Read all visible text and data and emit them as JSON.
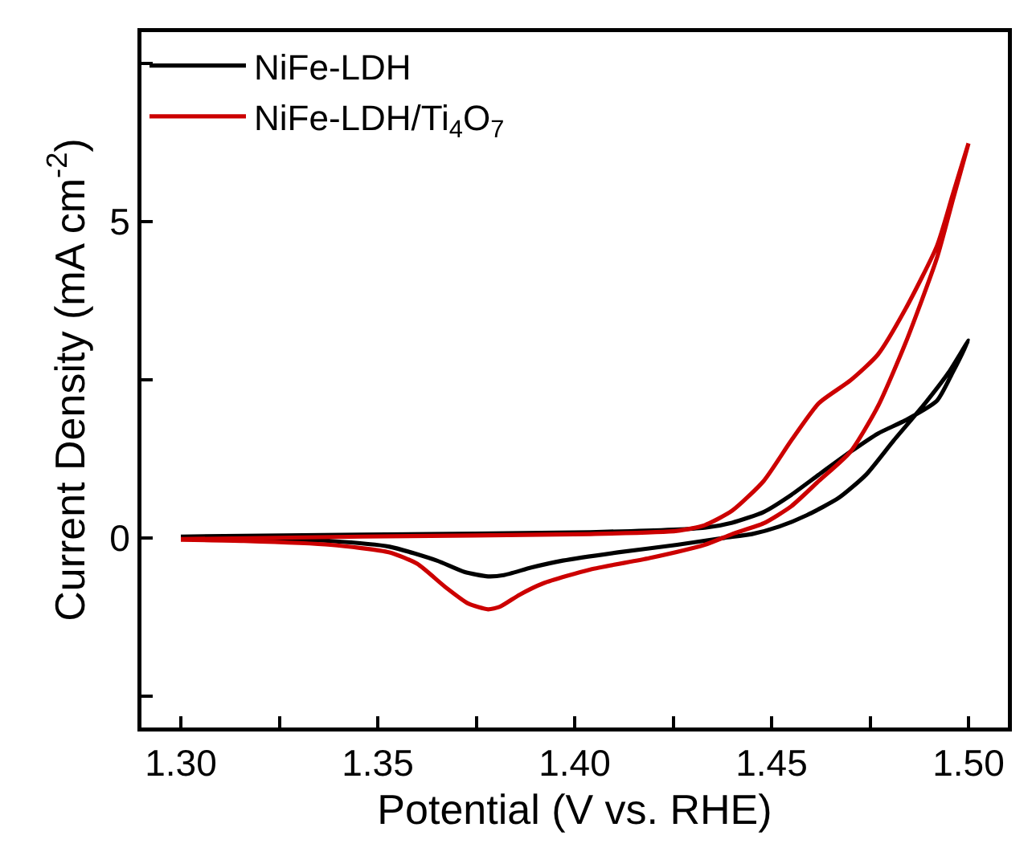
{
  "chart_data": {
    "type": "line",
    "xlabel": "Potential (V vs. RHE)",
    "ylabel": "Current Density (mA cm$^{-2}$)",
    "xlim": [
      1.29,
      1.51
    ],
    "ylim": [
      -3,
      8
    ],
    "xticks": [
      {
        "value": 1.3,
        "label": "1.30"
      },
      {
        "value": 1.325,
        "label": null
      },
      {
        "value": 1.35,
        "label": "1.35"
      },
      {
        "value": 1.375,
        "label": null
      },
      {
        "value": 1.4,
        "label": "1.40"
      },
      {
        "value": 1.425,
        "label": null
      },
      {
        "value": 1.45,
        "label": "1.45"
      },
      {
        "value": 1.475,
        "label": null
      },
      {
        "value": 1.5,
        "label": "1.50"
      }
    ],
    "yticks": [
      {
        "value": -2.5,
        "label": null
      },
      0,
      {
        "value": 2.5,
        "label": null
      },
      5,
      {
        "value": 7.5,
        "label": null
      }
    ],
    "grid": false,
    "legend": "top left",
    "marker": "none",
    "line_style": "solid",
    "series": [
      {
        "name": "NiFe-LDH",
        "color": "#000000",
        "x": [
          1.3,
          1.346,
          1.404,
          1.433,
          1.44,
          1.448,
          1.455,
          1.462,
          1.47,
          1.477,
          1.484,
          1.492,
          1.496,
          1.5,
          1.495,
          1.489,
          1.481,
          1.474,
          1.467,
          1.459,
          1.452,
          1.445,
          1.438,
          1.426,
          1.411,
          1.397,
          1.389,
          1.382,
          1.378,
          1.372,
          1.365,
          1.353,
          1.338,
          1.316,
          1.3
        ],
        "values": [
          0.02,
          0.05,
          0.09,
          0.16,
          0.24,
          0.41,
          0.68,
          1.0,
          1.36,
          1.65,
          1.86,
          2.17,
          2.62,
          3.12,
          2.62,
          2.13,
          1.54,
          1.0,
          0.63,
          0.36,
          0.18,
          0.06,
          0,
          -0.11,
          -0.23,
          -0.36,
          -0.47,
          -0.59,
          -0.61,
          -0.54,
          -0.36,
          -0.14,
          -0.05,
          0,
          0
        ]
      },
      {
        "name": "NiFe-LDH/Ti$_{4}$O$_{7}$",
        "color": "#cc0000",
        "x": [
          1.3,
          1.346,
          1.404,
          1.426,
          1.433,
          1.44,
          1.448,
          1.455,
          1.462,
          1.47,
          1.477,
          1.484,
          1.492,
          1.496,
          1.5,
          1.496,
          1.492,
          1.484,
          1.477,
          1.47,
          1.462,
          1.455,
          1.448,
          1.44,
          1.433,
          1.419,
          1.404,
          1.392,
          1.386,
          1.381,
          1.378,
          1.373,
          1.367,
          1.36,
          1.353,
          1.338,
          1.316,
          1.3
        ],
        "values": [
          -0.02,
          0.02,
          0.06,
          0.11,
          0.2,
          0.43,
          0.9,
          1.54,
          2.13,
          2.49,
          2.9,
          3.62,
          4.62,
          5.43,
          6.24,
          5.34,
          4.43,
          3.08,
          2.08,
          1.36,
          0.9,
          0.5,
          0.23,
          0.06,
          -0.11,
          -0.32,
          -0.5,
          -0.72,
          -0.9,
          -1.09,
          -1.13,
          -1.04,
          -0.77,
          -0.41,
          -0.23,
          -0.11,
          -0.05,
          -0.03
        ]
      }
    ]
  }
}
